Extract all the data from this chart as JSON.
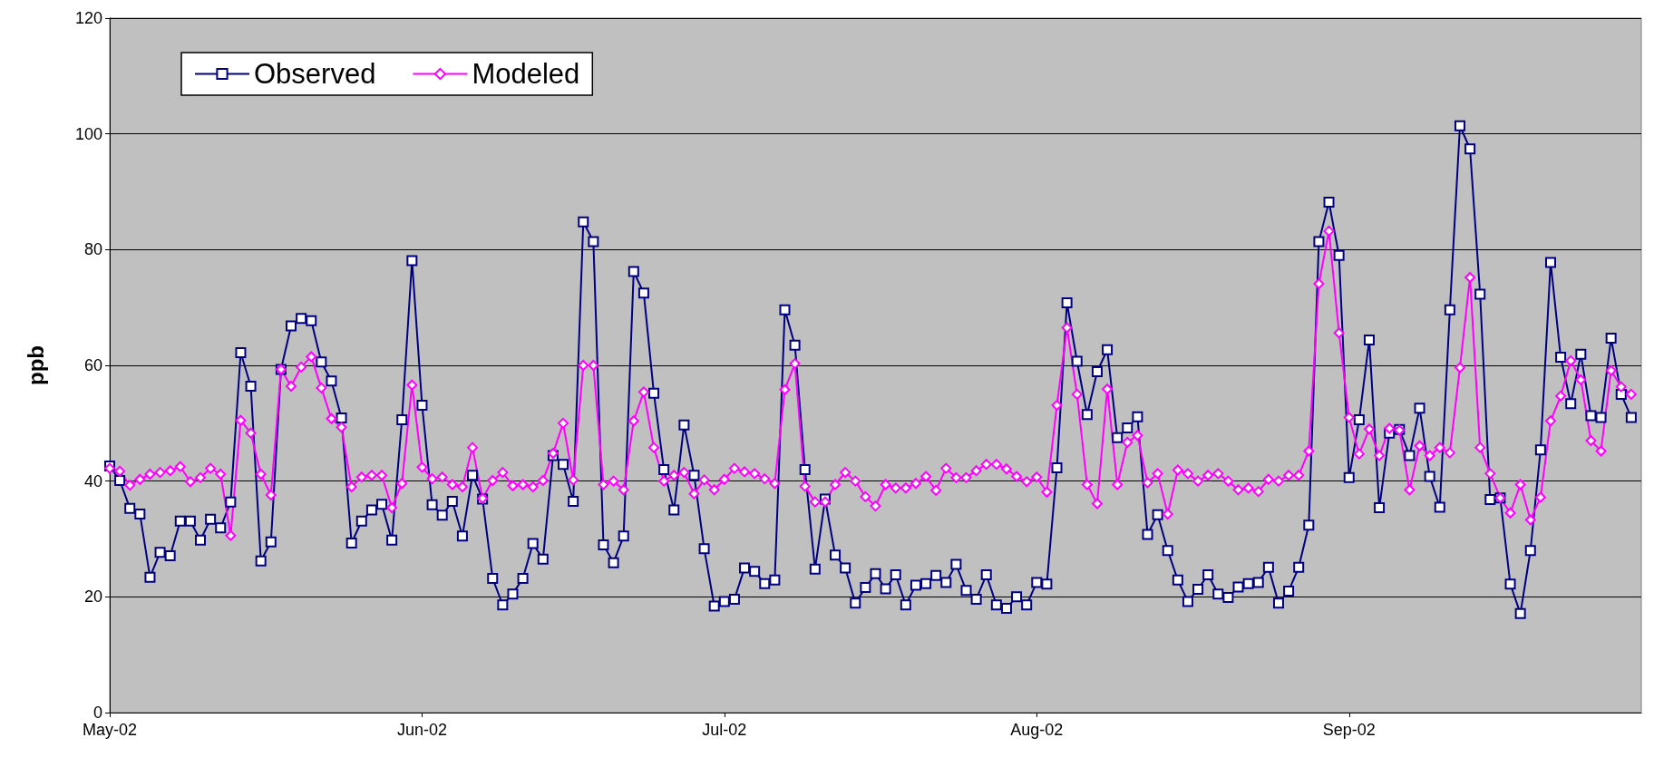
{
  "chart_data": {
    "type": "line",
    "ylabel": "ppb",
    "x": [
      "2002-05-01",
      "2002-05-02",
      "2002-05-03",
      "2002-05-04",
      "2002-05-05",
      "2002-05-06",
      "2002-05-07",
      "2002-05-08",
      "2002-05-09",
      "2002-05-10",
      "2002-05-11",
      "2002-05-12",
      "2002-05-13",
      "2002-05-14",
      "2002-05-15",
      "2002-05-16",
      "2002-05-17",
      "2002-05-18",
      "2002-05-19",
      "2002-05-20",
      "2002-05-21",
      "2002-05-22",
      "2002-05-23",
      "2002-05-24",
      "2002-05-25",
      "2002-05-26",
      "2002-05-27",
      "2002-05-28",
      "2002-05-29",
      "2002-05-30",
      "2002-05-31",
      "2002-06-01",
      "2002-06-02",
      "2002-06-03",
      "2002-06-04",
      "2002-06-05",
      "2002-06-06",
      "2002-06-07",
      "2002-06-08",
      "2002-06-09",
      "2002-06-10",
      "2002-06-11",
      "2002-06-12",
      "2002-06-13",
      "2002-06-14",
      "2002-06-15",
      "2002-06-16",
      "2002-06-17",
      "2002-06-18",
      "2002-06-19",
      "2002-06-20",
      "2002-06-21",
      "2002-06-22",
      "2002-06-23",
      "2002-06-24",
      "2002-06-25",
      "2002-06-26",
      "2002-06-27",
      "2002-06-28",
      "2002-06-29",
      "2002-06-30",
      "2002-07-01",
      "2002-07-02",
      "2002-07-03",
      "2002-07-04",
      "2002-07-05",
      "2002-07-06",
      "2002-07-07",
      "2002-07-08",
      "2002-07-09",
      "2002-07-10",
      "2002-07-11",
      "2002-07-12",
      "2002-07-13",
      "2002-07-14",
      "2002-07-15",
      "2002-07-16",
      "2002-07-17",
      "2002-07-18",
      "2002-07-19",
      "2002-07-20",
      "2002-07-21",
      "2002-07-22",
      "2002-07-23",
      "2002-07-24",
      "2002-07-25",
      "2002-07-26",
      "2002-07-27",
      "2002-07-28",
      "2002-07-29",
      "2002-07-30",
      "2002-07-31",
      "2002-08-01",
      "2002-08-02",
      "2002-08-03",
      "2002-08-04",
      "2002-08-05",
      "2002-08-06",
      "2002-08-07",
      "2002-08-08",
      "2002-08-09",
      "2002-08-10",
      "2002-08-11",
      "2002-08-12",
      "2002-08-13",
      "2002-08-14",
      "2002-08-15",
      "2002-08-16",
      "2002-08-17",
      "2002-08-18",
      "2002-08-19",
      "2002-08-20",
      "2002-08-21",
      "2002-08-22",
      "2002-08-23",
      "2002-08-24",
      "2002-08-25",
      "2002-08-26",
      "2002-08-27",
      "2002-08-28",
      "2002-08-29",
      "2002-08-30",
      "2002-08-31",
      "2002-09-01",
      "2002-09-02",
      "2002-09-03",
      "2002-09-04",
      "2002-09-05",
      "2002-09-06",
      "2002-09-07",
      "2002-09-08",
      "2002-09-09",
      "2002-09-10",
      "2002-09-11",
      "2002-09-12",
      "2002-09-13",
      "2002-09-14",
      "2002-09-15",
      "2002-09-16",
      "2002-09-17",
      "2002-09-18",
      "2002-09-19",
      "2002-09-20",
      "2002-09-21",
      "2002-09-22",
      "2002-09-23",
      "2002-09-24",
      "2002-09-25",
      "2002-09-26",
      "2002-09-27",
      "2002-09-28",
      "2002-09-29"
    ],
    "series": [
      {
        "name": "Observed",
        "color": "#000080",
        "marker": "square",
        "values": [
          42.6,
          40.1,
          35.3,
          34.3,
          23.4,
          27.7,
          27.1,
          33.1,
          33.1,
          29.8,
          33.4,
          31.9,
          36.4,
          62.2,
          56.4,
          26.2,
          29.5,
          59.3,
          66.8,
          68.1,
          67.7,
          60.6,
          57.3,
          50.9,
          29.3,
          33.1,
          35,
          36,
          29.8,
          50.6,
          78.1,
          53.1,
          35.9,
          34.1,
          36.5,
          30.5,
          41,
          36.9,
          23.2,
          18.6,
          20.5,
          23.2,
          29.2,
          26.5,
          44.4,
          42.9,
          36.5,
          84.8,
          81.4,
          29,
          25.9,
          30.5,
          76.2,
          72.5,
          55.2,
          42,
          35,
          49.7,
          41,
          28.3,
          18.4,
          19.2,
          19.6,
          25,
          24.4,
          22.3,
          22.9,
          69.6,
          63.5,
          42,
          24.8,
          36.9,
          27.2,
          25,
          18.9,
          21.6,
          24,
          21.4,
          23.8,
          18.6,
          22,
          22.3,
          23.7,
          22.5,
          25.6,
          21.1,
          19.6,
          23.8,
          18.6,
          18,
          20,
          18.6,
          22.5,
          22.2,
          42.3,
          70.8,
          60.7,
          51.5,
          58.9,
          62.7,
          47.5,
          49.2,
          51.1,
          30.8,
          34.2,
          28,
          22.9,
          19.2,
          21.3,
          23.8,
          20.5,
          19.9,
          21.7,
          22.3,
          22.5,
          25.1,
          18.9,
          21,
          25.1,
          32.4,
          81.4,
          88.2,
          79,
          40.6,
          50.6,
          64.4,
          35.4,
          48.3,
          48.9,
          44.4,
          52.6,
          40.8,
          35.5,
          69.6,
          101.4,
          97.4,
          72.3,
          36.8,
          37.1,
          22.2,
          17.1,
          28,
          45.4,
          77.8,
          61.4,
          53.4,
          61.9,
          51.3,
          51,
          64.7,
          55,
          51
        ]
      },
      {
        "name": "Modeled",
        "color": "#ff00ff",
        "marker": "diamond",
        "values": [
          42.2,
          41.7,
          39.3,
          40.3,
          41.2,
          41.5,
          41.8,
          42.5,
          39.9,
          40.6,
          42.2,
          41.2,
          30.6,
          50.5,
          48.3,
          41.2,
          37.6,
          59.3,
          56.4,
          59.7,
          61.5,
          56.1,
          50.8,
          49.3,
          39,
          40.7,
          41,
          41,
          35.4,
          39.6,
          56.6,
          42.4,
          40.4,
          40.7,
          39.4,
          39,
          45.8,
          37,
          40.1,
          41.5,
          39.2,
          39.4,
          39,
          40.1,
          44.8,
          50,
          40.2,
          60,
          60,
          39.4,
          40,
          38.5,
          50.4,
          55.4,
          45.8,
          40,
          41,
          41.5,
          37.8,
          40.2,
          38.5,
          40.3,
          42.2,
          41.6,
          41.3,
          40.4,
          39.6,
          55.8,
          60.3,
          39.1,
          36.4,
          36.4,
          39.4,
          41.5,
          40,
          37.3,
          35.7,
          39.4,
          38.8,
          38.8,
          39.6,
          40.8,
          38.4,
          42.2,
          40.6,
          40.6,
          41.8,
          42.9,
          42.9,
          42.1,
          40.8,
          39.9,
          40.7,
          38.1,
          53.1,
          66.5,
          55,
          39.4,
          36.1,
          55.9,
          39.4,
          46.7,
          47.9,
          39.7,
          41.3,
          34.3,
          41.9,
          41.3,
          40,
          41,
          41.3,
          40,
          38.5,
          38.8,
          38.2,
          40.3,
          40,
          41,
          41,
          45.2,
          74.1,
          83.2,
          65.6,
          51,
          44.7,
          49,
          44.4,
          49.1,
          48.8,
          38.5,
          46.1,
          44.4,
          45.8,
          44.9,
          59.6,
          75.2,
          45.8,
          41.3,
          37.1,
          34.5,
          39.4,
          33.3,
          37.2,
          50.4,
          54.7,
          60.8,
          57.5,
          47,
          45.2,
          59.1,
          56.3,
          55
        ]
      }
    ],
    "xlim": [
      "2002-05-01",
      "2002-09-30"
    ],
    "xticks": [
      {
        "value": "2002-05-01",
        "label": "May-02"
      },
      {
        "value": "2002-06-01",
        "label": "Jun-02"
      },
      {
        "value": "2002-07-01",
        "label": "Jul-02"
      },
      {
        "value": "2002-08-01",
        "label": "Aug-02"
      },
      {
        "value": "2002-09-01",
        "label": "Sep-02"
      }
    ],
    "ylim": [
      0,
      120
    ],
    "yticks": [
      0,
      20,
      40,
      60,
      80,
      100,
      120
    ],
    "grid": "y",
    "legend": "top left",
    "line_style": "solid"
  }
}
